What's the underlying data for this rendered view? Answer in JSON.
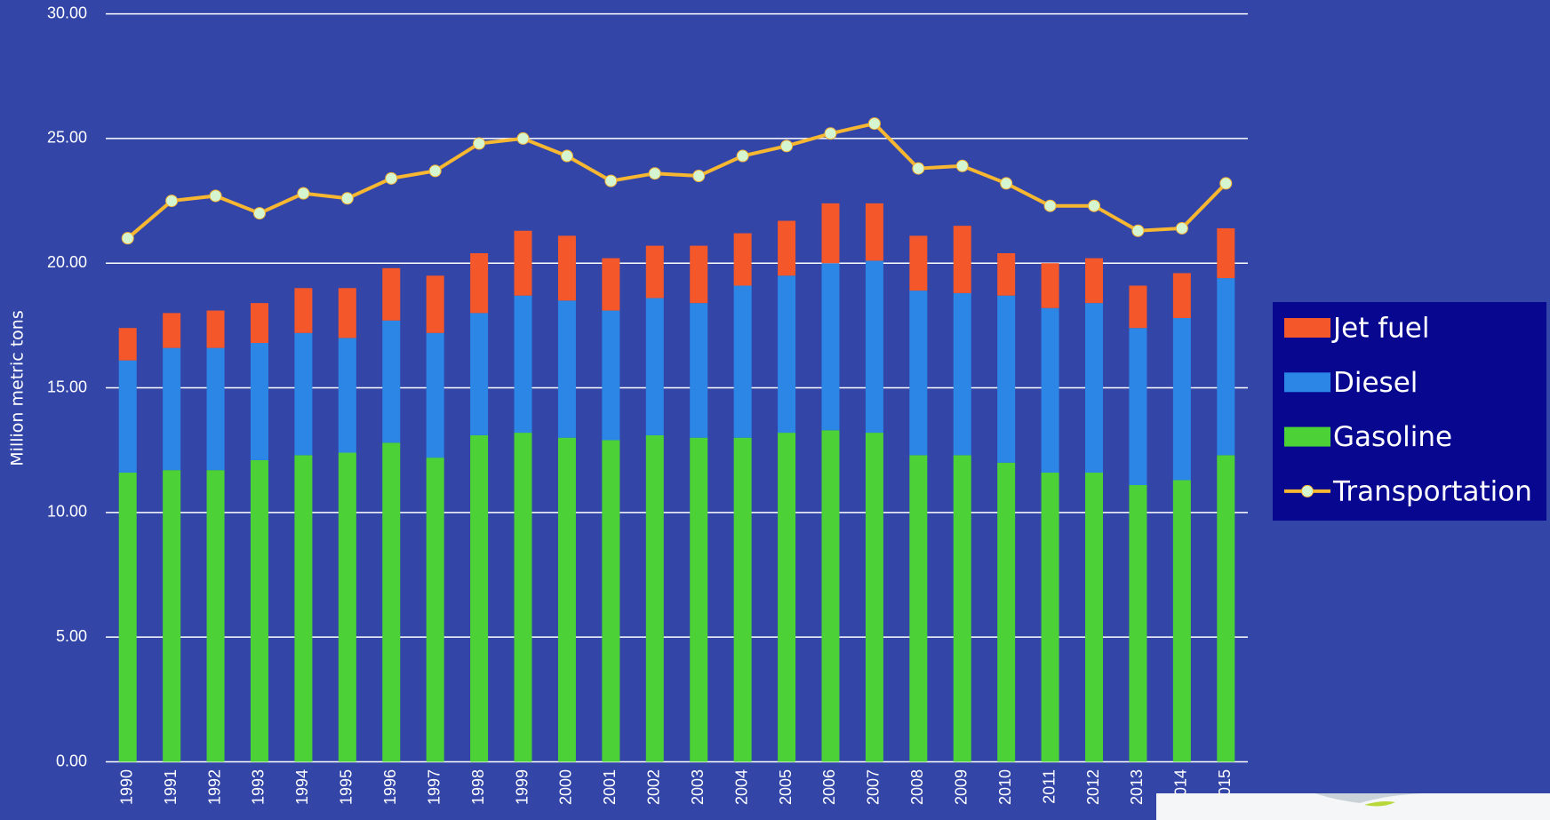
{
  "chart_data": {
    "type": "bar",
    "y_label": "Million metric tons",
    "categories": [
      "1990",
      "1991",
      "1992",
      "1993",
      "1994",
      "1995",
      "1996",
      "1997",
      "1998",
      "1999",
      "2000",
      "2001",
      "2002",
      "2003",
      "2004",
      "2005",
      "2006",
      "2007",
      "2008",
      "2009",
      "2010",
      "2011",
      "2012",
      "2013",
      "2014",
      "2015"
    ],
    "series": [
      {
        "name": "Jet fuel",
        "type": "bar",
        "color": "#f4572a",
        "values": [
          1.3,
          1.4,
          1.5,
          1.6,
          1.8,
          2.0,
          2.1,
          2.3,
          2.4,
          2.6,
          2.6,
          2.1,
          2.1,
          2.3,
          2.1,
          2.2,
          2.4,
          2.3,
          2.2,
          2.7,
          1.7,
          1.8,
          1.8,
          1.7,
          1.8,
          2.0
        ]
      },
      {
        "name": "Diesel",
        "type": "bar",
        "color": "#2b86e6",
        "values": [
          4.5,
          4.9,
          4.9,
          4.7,
          4.9,
          4.6,
          4.9,
          5.0,
          4.9,
          5.5,
          5.5,
          5.2,
          5.5,
          5.4,
          6.1,
          6.3,
          6.7,
          6.9,
          6.6,
          6.5,
          6.7,
          6.6,
          6.8,
          6.3,
          6.5,
          7.1
        ]
      },
      {
        "name": "Gasoline",
        "type": "bar",
        "color": "#4cd137",
        "values": [
          11.6,
          11.7,
          11.7,
          12.1,
          12.3,
          12.4,
          12.8,
          12.2,
          13.1,
          13.2,
          13.0,
          12.9,
          13.1,
          13.0,
          13.0,
          13.2,
          13.3,
          13.2,
          12.3,
          12.3,
          12.0,
          11.6,
          11.6,
          11.1,
          11.3,
          12.3
        ]
      },
      {
        "name": "Transportation",
        "type": "line",
        "color": "#f7b731",
        "values": [
          21.0,
          22.5,
          22.7,
          22.0,
          22.8,
          22.6,
          23.4,
          23.7,
          24.8,
          25.0,
          24.3,
          23.3,
          23.6,
          23.5,
          24.3,
          24.7,
          25.2,
          25.6,
          23.8,
          23.9,
          23.2,
          22.3,
          22.3,
          21.3,
          21.4,
          23.2
        ]
      }
    ],
    "ylim": [
      0,
      30
    ],
    "yticks": [
      {
        "value": 0,
        "label": "0.00"
      },
      {
        "value": 5,
        "label": "5.00"
      },
      {
        "value": 10,
        "label": "10.00"
      },
      {
        "value": 15,
        "label": "15.00"
      },
      {
        "value": 20,
        "label": "20.00"
      },
      {
        "value": 25,
        "label": "25.00"
      },
      {
        "value": 30,
        "label": "30.00"
      }
    ],
    "grid": true,
    "legend": "right"
  }
}
